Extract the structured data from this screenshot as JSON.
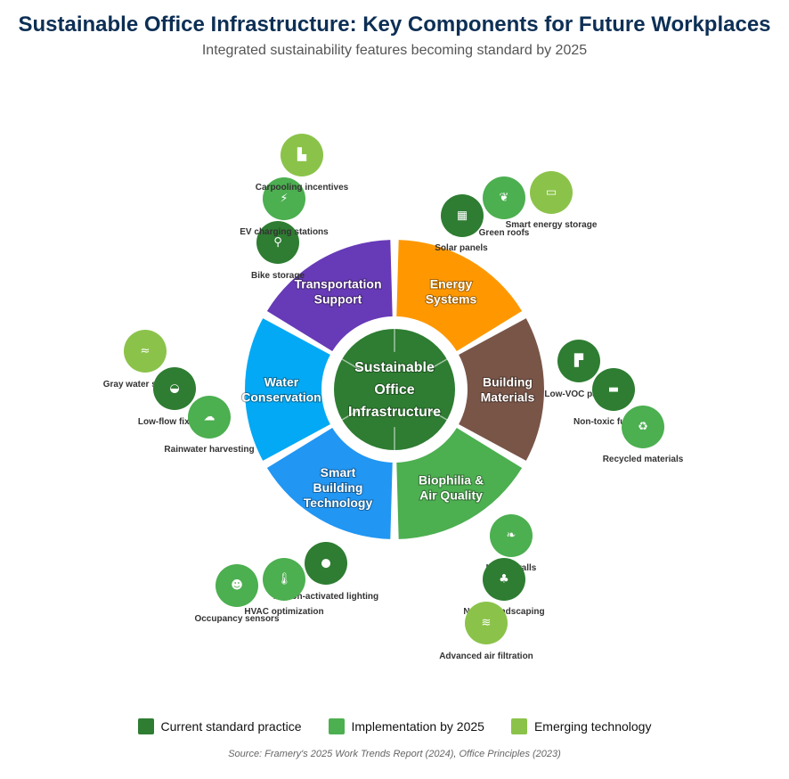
{
  "title": "Sustainable Office Infrastructure: Key Components for Future Workplaces",
  "subtitle": "Integrated sustainability features becoming standard by 2025",
  "center": {
    "lines": [
      "Sustainable",
      "Office",
      "Infrastructure"
    ],
    "color": "#2e7d32"
  },
  "status_colors": {
    "current": "#2e7d32",
    "by2025": "#4caf50",
    "emerging": "#8bc34a"
  },
  "categories": [
    {
      "id": "energy",
      "lines": [
        "Energy",
        "Systems"
      ],
      "color": "#ff9800",
      "features": [
        {
          "label": "Solar panels",
          "status": "current",
          "icon": "solar-panel-icon",
          "glyph": "▦"
        },
        {
          "label": "Green roofs",
          "status": "by2025",
          "icon": "seedling-icon",
          "glyph": "❦"
        },
        {
          "label": "Smart energy storage",
          "status": "emerging",
          "icon": "battery-icon",
          "glyph": "▭"
        }
      ]
    },
    {
      "id": "materials",
      "lines": [
        "Building",
        "Materials"
      ],
      "color": "#795548",
      "features": [
        {
          "label": "Low-VOC paints",
          "status": "current",
          "icon": "paint-roller-icon",
          "glyph": "▛"
        },
        {
          "label": "Non-toxic furniture",
          "status": "current",
          "icon": "couch-icon",
          "glyph": "▬"
        },
        {
          "label": "Recycled materials",
          "status": "by2025",
          "icon": "recycle-icon",
          "glyph": "♻"
        }
      ]
    },
    {
      "id": "biophilia",
      "lines": [
        "Biophilia &",
        "Air Quality"
      ],
      "color": "#4caf50",
      "features": [
        {
          "label": "Living walls",
          "status": "by2025",
          "icon": "leaf-icon",
          "glyph": "❧"
        },
        {
          "label": "Native landscaping",
          "status": "current",
          "icon": "tree-icon",
          "glyph": "♣"
        },
        {
          "label": "Advanced air filtration",
          "status": "emerging",
          "icon": "wind-icon",
          "glyph": "≋"
        }
      ]
    },
    {
      "id": "smart",
      "lines": [
        "Smart",
        "Building",
        "Technology"
      ],
      "color": "#2196f3",
      "features": [
        {
          "label": "Motion-activated lighting",
          "status": "current",
          "icon": "lightbulb-icon",
          "glyph": "●"
        },
        {
          "label": "HVAC optimization",
          "status": "by2025",
          "icon": "thermometer-icon",
          "glyph": "🌡"
        },
        {
          "label": "Occupancy sensors",
          "status": "by2025",
          "icon": "user-icon",
          "glyph": "☻"
        }
      ]
    },
    {
      "id": "water",
      "lines": [
        "Water",
        "Conservation"
      ],
      "color": "#03a9f4",
      "features": [
        {
          "label": "Gray water systems",
          "status": "emerging",
          "icon": "water-icon",
          "glyph": "≈"
        },
        {
          "label": "Low-flow fixtures",
          "status": "current",
          "icon": "faucet-icon",
          "glyph": "◒"
        },
        {
          "label": "Rainwater harvesting",
          "status": "by2025",
          "icon": "cloud-rain-icon",
          "glyph": "☁"
        }
      ]
    },
    {
      "id": "transport",
      "lines": [
        "Transportation",
        "Support"
      ],
      "color": "#673ab7",
      "features": [
        {
          "label": "Bike storage",
          "status": "current",
          "icon": "bicycle-icon",
          "glyph": "⚲"
        },
        {
          "label": "EV charging stations",
          "status": "by2025",
          "icon": "charging-station-icon",
          "glyph": "⚡"
        },
        {
          "label": "Carpooling incentives",
          "status": "emerging",
          "icon": "car-icon",
          "glyph": "▙"
        }
      ]
    }
  ],
  "legend": [
    {
      "label": "Current standard practice",
      "color": "#2e7d32"
    },
    {
      "label": "Implementation by 2025",
      "color": "#4caf50"
    },
    {
      "label": "Emerging technology",
      "color": "#8bc34a"
    }
  ],
  "source": "Source: Framery's 2025 Work Trends Report (2024), Office Principles (2023)"
}
